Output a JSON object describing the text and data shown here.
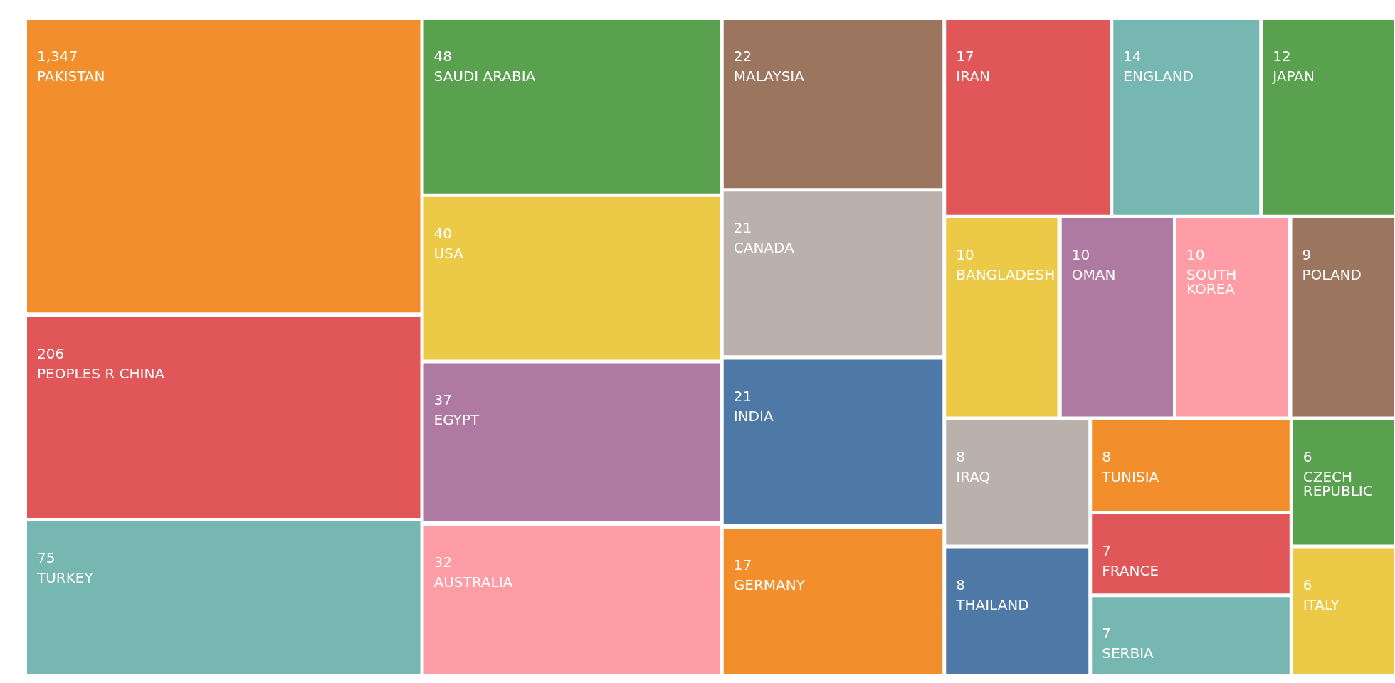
{
  "chart_data": {
    "type": "other",
    "value_labels": [
      "1,347",
      "206",
      "75",
      "48",
      "40",
      "37",
      "32",
      "22",
      "21",
      "21",
      "17",
      "17",
      "14",
      "12",
      "10",
      "10",
      "10",
      "9",
      "8",
      "8",
      "8",
      "7",
      "7",
      "6",
      "6"
    ],
    "categories": [
      "PAKISTAN",
      "PEOPLES R CHINA",
      "TURKEY",
      "SAUDI ARABIA",
      "USA",
      "EGYPT",
      "AUSTRALIA",
      "MALAYSIA",
      "CANADA",
      "INDIA",
      "GERMANY",
      "IRAN",
      "ENGLAND",
      "JAPAN",
      "BANGLADESH",
      "OMAN",
      "SOUTH KOREA",
      "POLAND",
      "IRAQ",
      "THAILAND",
      "TUNISIA",
      "FRANCE",
      "SERBIA",
      "CZECH REPUBLIC",
      "ITALY"
    ],
    "values": [
      1347,
      206,
      75,
      48,
      40,
      37,
      32,
      22,
      21,
      21,
      17,
      17,
      14,
      12,
      10,
      10,
      10,
      9,
      8,
      8,
      8,
      7,
      7,
      6,
      6
    ],
    "colors": [
      "#f28e2b",
      "#e15759",
      "#76b7b2",
      "#59a14f",
      "#edc948",
      "#af7aa1",
      "#ff9da7",
      "#9c755f",
      "#bab0ac",
      "#4e79a7",
      "#f28e2b",
      "#e15759",
      "#76b7b2",
      "#59a14f",
      "#edc948",
      "#af7aa1",
      "#ff9da7",
      "#9c755f",
      "#bab0ac",
      "#4e79a7",
      "#f28e2b",
      "#e15759",
      "#76b7b2",
      "#59a14f",
      "#edc948"
    ]
  }
}
